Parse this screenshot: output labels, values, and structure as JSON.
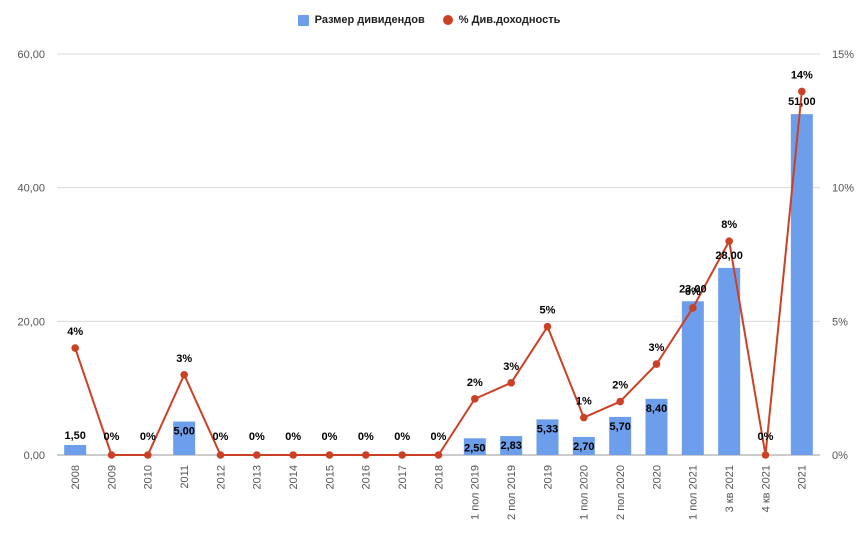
{
  "chart_data": {
    "type": "bar",
    "categories": [
      "2008",
      "2009",
      "2010",
      "2011",
      "2012",
      "2013",
      "2014",
      "2015",
      "2016",
      "2017",
      "2018",
      "1 пол 2019",
      "2 пол 2019",
      "2019",
      "1 пол 2020",
      "2 пол 2020",
      "2020",
      "1 пол 2021",
      "3 кв 2021",
      "4 кв 2021",
      "2021"
    ],
    "series": [
      {
        "name": "Размер дивидендов",
        "kind": "bar",
        "axis": "left",
        "color": "#6d9eeb",
        "values": [
          1.5,
          0,
          0,
          5.0,
          0,
          0,
          0,
          0,
          0,
          0,
          0,
          2.5,
          2.83,
          5.33,
          2.7,
          5.7,
          8.4,
          23.0,
          28.0,
          0,
          51.0
        ],
        "labels": [
          "1,50",
          "",
          "",
          "5,00",
          "",
          "",
          "",
          "",
          "",
          "",
          "",
          "2,50",
          "2,83",
          "5,33",
          "2,70",
          "5,70",
          "8,40",
          "23,00",
          "28,00",
          "",
          "51,00"
        ]
      },
      {
        "name": "% Див.доходность",
        "kind": "line",
        "axis": "right",
        "color": "#cc4125",
        "values": [
          4.0,
          0,
          0,
          3.0,
          0,
          0,
          0,
          0,
          0,
          0,
          0,
          2.1,
          2.7,
          4.8,
          1.4,
          2.0,
          3.4,
          5.5,
          8.0,
          0,
          13.6
        ],
        "labels": [
          "4%",
          "0%",
          "0%",
          "3%",
          "0%",
          "0%",
          "0%",
          "0%",
          "0%",
          "0%",
          "0%",
          "2%",
          "3%",
          "5%",
          "1%",
          "2%",
          "3%",
          "6%",
          "8%",
          "0%",
          "14%"
        ]
      }
    ],
    "y_left": {
      "ylim": [
        0,
        60
      ],
      "ticks": [
        "0,00",
        "20,00",
        "40,00",
        "60,00"
      ],
      "tick_values": [
        0,
        20,
        40,
        60
      ]
    },
    "y_right": {
      "ylim": [
        0,
        15
      ],
      "ticks": [
        "0%",
        "5%",
        "10%",
        "15%"
      ],
      "tick_values": [
        0,
        5,
        10,
        15
      ]
    },
    "legend": "top-center",
    "grid": true
  }
}
